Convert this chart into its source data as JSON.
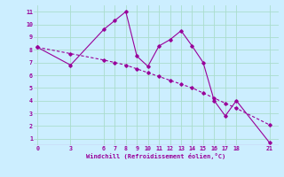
{
  "xlabel": "Windchill (Refroidissement éolien,°C)",
  "bg_color": "#cceeff",
  "grid_color": "#aaddcc",
  "line_color": "#990099",
  "line1_x": [
    0,
    3,
    6,
    7,
    8,
    9,
    10,
    11,
    12,
    13,
    14,
    15,
    16,
    17,
    18,
    21
  ],
  "line1_y": [
    8.2,
    6.8,
    9.6,
    10.3,
    11.0,
    7.5,
    6.7,
    8.3,
    8.8,
    9.5,
    8.3,
    7.0,
    4.0,
    2.8,
    4.0,
    0.7
  ],
  "line2_x": [
    0,
    3,
    6,
    7,
    8,
    9,
    10,
    11,
    12,
    13,
    14,
    15,
    16,
    17,
    18,
    21
  ],
  "line2_y": [
    8.2,
    7.7,
    7.2,
    7.0,
    6.8,
    6.5,
    6.2,
    5.9,
    5.6,
    5.3,
    5.0,
    4.6,
    4.2,
    3.8,
    3.4,
    2.1
  ],
  "ylim": [
    0.5,
    11.5
  ],
  "yticks": [
    1,
    2,
    3,
    4,
    5,
    6,
    7,
    8,
    9,
    10,
    11
  ],
  "xticks": [
    0,
    3,
    6,
    7,
    8,
    9,
    10,
    11,
    12,
    13,
    14,
    15,
    16,
    17,
    18,
    21
  ],
  "xlim": [
    -0.3,
    21.8
  ]
}
